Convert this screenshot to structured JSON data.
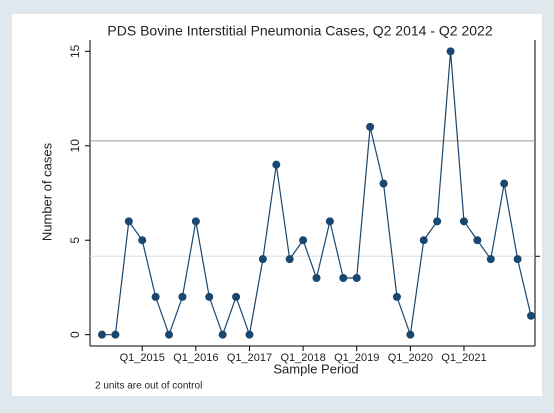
{
  "chart_data": {
    "type": "line",
    "title": "PDS Bovine Interstitial Pneumonia Cases, Q2 2014 - Q2 2022",
    "x_label": "Sample Period",
    "y_label": "Number of cases",
    "annotation": "2 units are out of control",
    "categories": [
      null,
      null,
      null,
      "Q1_2015",
      null,
      null,
      null,
      "Q1_2016",
      null,
      null,
      null,
      "Q1_2017",
      null,
      null,
      null,
      "Q1_2018",
      null,
      null,
      null,
      "Q1_2019",
      null,
      null,
      null,
      "Q1_2020",
      null,
      null,
      null,
      "Q1_2021",
      null,
      null,
      null,
      null,
      null
    ],
    "values": [
      0,
      0,
      6,
      5,
      2,
      0,
      2,
      6,
      2,
      0,
      2,
      0,
      4,
      9,
      4,
      5,
      3,
      6,
      3,
      3,
      11,
      8,
      2,
      0,
      5,
      6,
      15,
      6,
      5,
      4,
      8,
      4,
      1
    ],
    "color": "#1a476f",
    "center_line": 4.15,
    "upper_control_limit": 10.26,
    "ylim": [
      -0.6,
      15.6
    ],
    "yticks": [
      0,
      5,
      10,
      15
    ]
  }
}
